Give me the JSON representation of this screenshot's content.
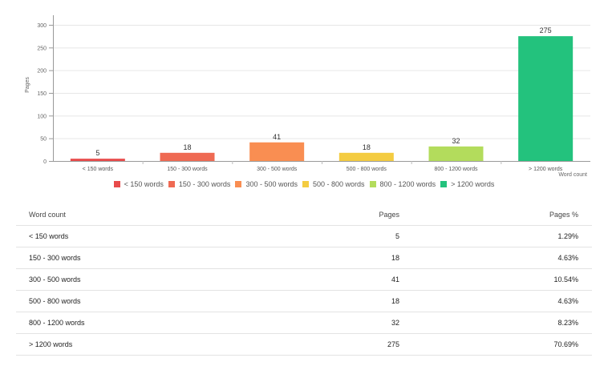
{
  "chart_data": {
    "type": "bar",
    "categories": [
      "< 150 words",
      "150 - 300 words",
      "300 - 500 words",
      "500 - 800 words",
      "800 - 1200 words",
      "> 1200 words"
    ],
    "values": [
      5,
      18,
      41,
      18,
      32,
      275
    ],
    "colors": [
      "#e84b4b",
      "#ef6a53",
      "#f98e52",
      "#f4cc41",
      "#b3dc5c",
      "#23c27d"
    ],
    "ylabel": "Pages",
    "xlabel": "Word count",
    "ylim": [
      0,
      300
    ],
    "yticks": [
      0,
      50,
      100,
      150,
      200,
      250,
      300
    ],
    "grid": true,
    "legend": "bottom"
  },
  "table": {
    "headers": [
      "Word count",
      "Pages",
      "Pages %"
    ],
    "rows": [
      [
        "< 150 words",
        "5",
        "1.29%"
      ],
      [
        "150 - 300 words",
        "18",
        "4.63%"
      ],
      [
        "300 - 500 words",
        "41",
        "10.54%"
      ],
      [
        "500 - 800 words",
        "18",
        "4.63%"
      ],
      [
        "800 - 1200 words",
        "32",
        "8.23%"
      ],
      [
        "> 1200 words",
        "275",
        "70.69%"
      ]
    ]
  }
}
